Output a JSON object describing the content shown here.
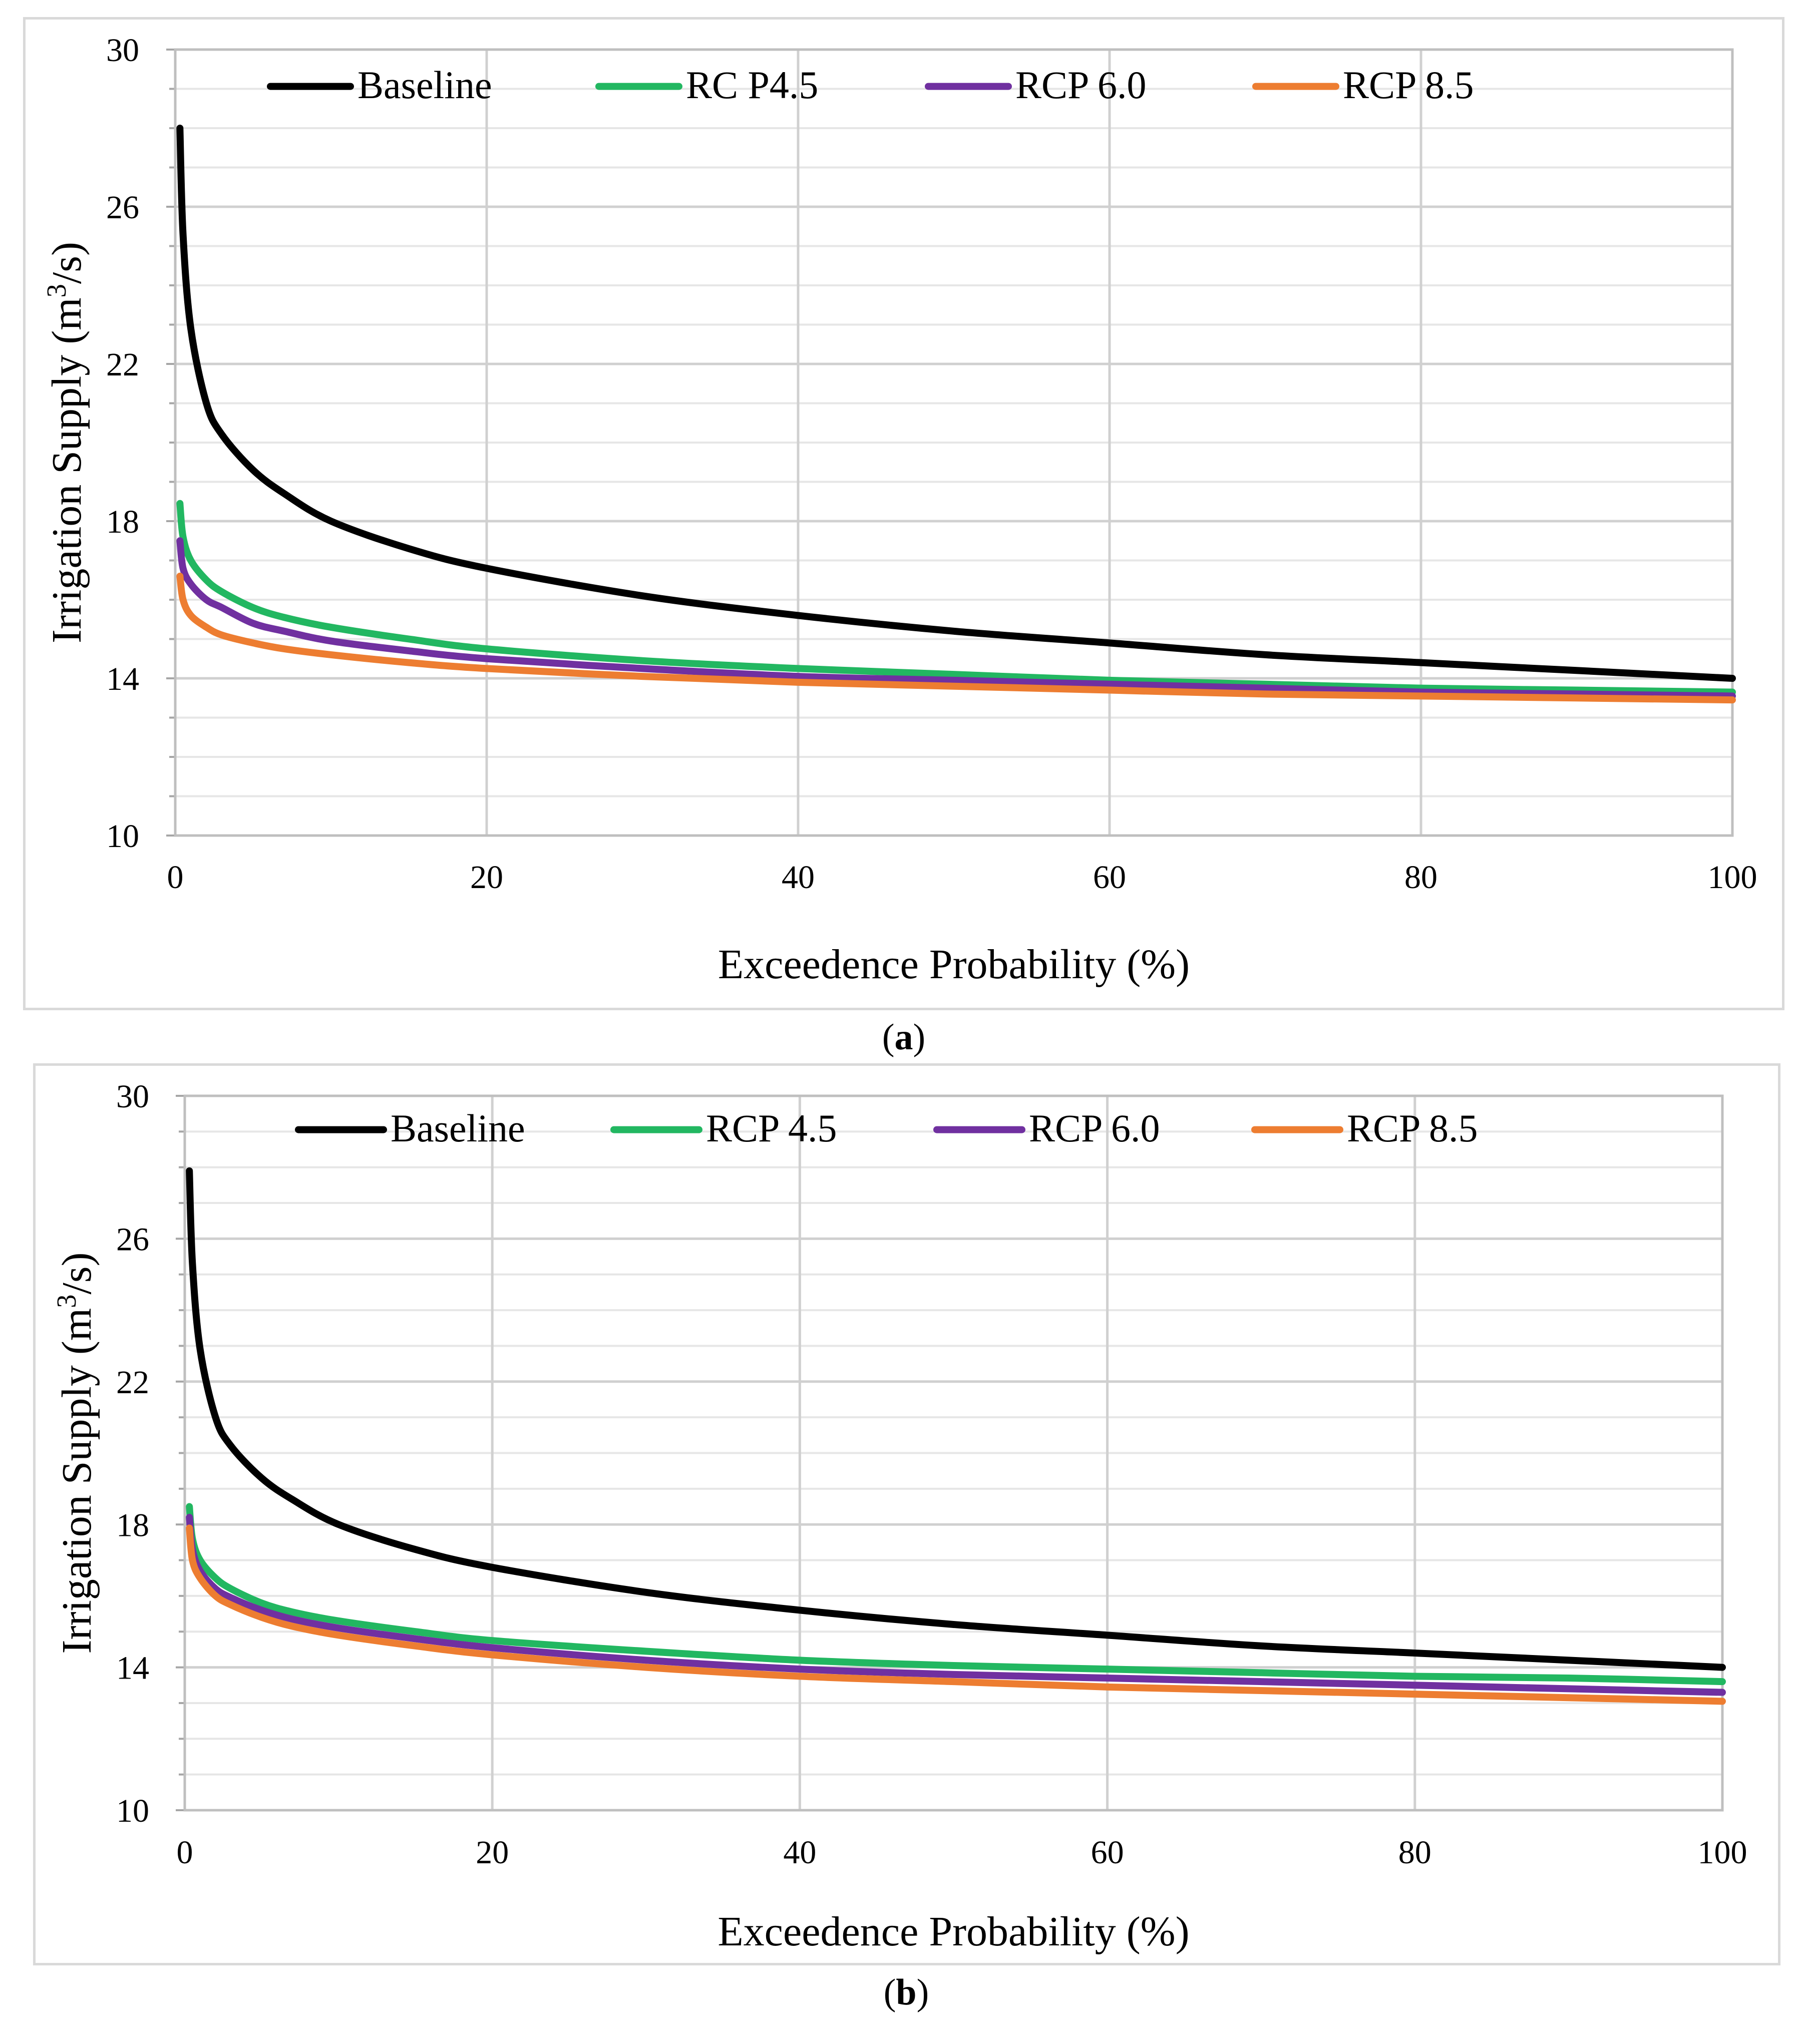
{
  "chart_data": [
    {
      "type": "line",
      "panel_label": "a",
      "title": "",
      "xlabel": "Exceedence Probability (%)",
      "ylabel": "Irrigation Supply (m³/s)",
      "ylabel_parts": {
        "main": "Irrigation Supply (m",
        "sup": "3",
        "tail": "/s)"
      },
      "xlim": [
        0,
        100
      ],
      "ylim": [
        10,
        30
      ],
      "xticks": [
        0,
        20,
        40,
        60,
        80,
        100
      ],
      "yticks": [
        10,
        14,
        18,
        22,
        26,
        30
      ],
      "grid": true,
      "legend_position": "top",
      "x": [
        0.3,
        0.5,
        1,
        2,
        3,
        5,
        7,
        10,
        15,
        20,
        30,
        40,
        50,
        60,
        70,
        80,
        90,
        100
      ],
      "series": [
        {
          "name": "Baseline",
          "color": "#000000",
          "values": [
            28.0,
            25.3,
            22.9,
            21.0,
            20.2,
            19.3,
            18.7,
            18.0,
            17.3,
            16.8,
            16.1,
            15.6,
            15.2,
            14.9,
            14.6,
            14.4,
            14.2,
            14.0
          ]
        },
        {
          "name": "RC P4.5",
          "color": "#22b761",
          "values": [
            18.45,
            17.6,
            17.0,
            16.5,
            16.2,
            15.8,
            15.55,
            15.3,
            15.0,
            14.75,
            14.45,
            14.25,
            14.1,
            13.95,
            13.85,
            13.75,
            13.7,
            13.65
          ]
        },
        {
          "name": "RCP 6.0",
          "color": "#7030a0",
          "values": [
            17.5,
            16.8,
            16.4,
            16.0,
            15.8,
            15.4,
            15.2,
            14.95,
            14.7,
            14.5,
            14.25,
            14.05,
            13.95,
            13.85,
            13.75,
            13.65,
            13.6,
            13.55
          ]
        },
        {
          "name": "RCP 8.5",
          "color": "#ed7d31",
          "values": [
            16.6,
            16.0,
            15.6,
            15.3,
            15.1,
            14.9,
            14.75,
            14.6,
            14.4,
            14.25,
            14.05,
            13.9,
            13.8,
            13.7,
            13.6,
            13.55,
            13.5,
            13.45
          ]
        }
      ]
    },
    {
      "type": "line",
      "panel_label": "b",
      "title": "",
      "xlabel": "Exceedence Probability (%)",
      "ylabel": "Irrigation Supply (m³/s)",
      "ylabel_parts": {
        "main": "Irrigation Supply (m",
        "sup": "3",
        "tail": "/s)"
      },
      "xlim": [
        0,
        100
      ],
      "ylim": [
        10,
        30
      ],
      "xticks": [
        0,
        20,
        40,
        60,
        80,
        100
      ],
      "yticks": [
        10,
        14,
        18,
        22,
        26,
        30
      ],
      "grid": true,
      "legend_position": "top",
      "x": [
        0.3,
        0.5,
        1,
        2,
        3,
        5,
        7,
        10,
        15,
        20,
        30,
        40,
        50,
        60,
        70,
        80,
        90,
        100
      ],
      "series": [
        {
          "name": "Baseline",
          "color": "#000000",
          "values": [
            27.9,
            25.3,
            22.9,
            21.0,
            20.2,
            19.3,
            18.7,
            18.0,
            17.3,
            16.8,
            16.1,
            15.6,
            15.2,
            14.9,
            14.6,
            14.4,
            14.2,
            14.0
          ]
        },
        {
          "name": "RCP 4.5",
          "color": "#22b761",
          "values": [
            18.5,
            17.6,
            17.0,
            16.5,
            16.2,
            15.8,
            15.55,
            15.3,
            15.0,
            14.75,
            14.45,
            14.2,
            14.05,
            13.95,
            13.85,
            13.75,
            13.7,
            13.6
          ]
        },
        {
          "name": "RCP 6.0",
          "color": "#7030a0",
          "values": [
            18.2,
            17.3,
            16.7,
            16.2,
            15.95,
            15.6,
            15.35,
            15.1,
            14.8,
            14.55,
            14.2,
            13.95,
            13.8,
            13.7,
            13.6,
            13.5,
            13.4,
            13.3
          ]
        },
        {
          "name": "RCP 8.5",
          "color": "#ed7d31",
          "values": [
            17.9,
            17.0,
            16.5,
            16.0,
            15.75,
            15.4,
            15.15,
            14.9,
            14.6,
            14.35,
            14.0,
            13.75,
            13.6,
            13.45,
            13.35,
            13.25,
            13.15,
            13.05
          ]
        }
      ]
    }
  ]
}
